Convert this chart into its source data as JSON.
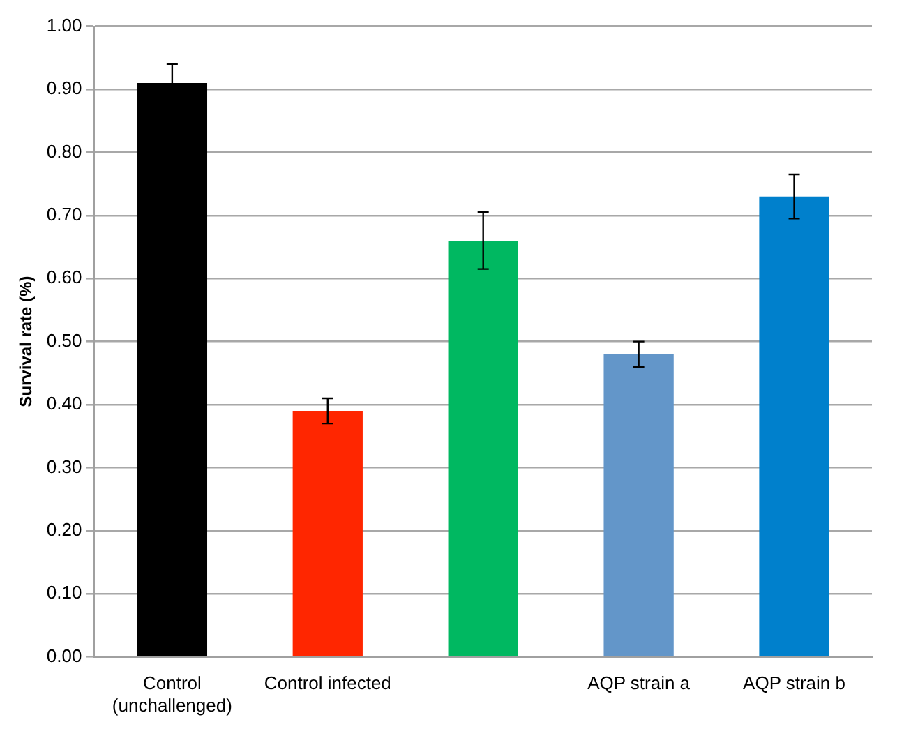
{
  "chart_data": {
    "type": "bar",
    "ylabel": "Survival rate (%)",
    "categories": [
      "Control (unchallenged)",
      "Control infected",
      null,
      "AQP strain a",
      "AQP strain b"
    ],
    "values": [
      0.91,
      0.39,
      0.66,
      0.48,
      0.73
    ],
    "colors": [
      "#000000",
      "#ff2600",
      "#00b861",
      "#6396c9",
      "#0080cc"
    ],
    "errors": [
      0.03,
      0.02,
      0.045,
      0.02,
      0.035
    ],
    "ylim": [
      0,
      1
    ],
    "yticks": [
      {
        "value": 0,
        "label": "0.00"
      },
      {
        "value": 0.1,
        "label": "0.10"
      },
      {
        "value": 0.2,
        "label": "0.20"
      },
      {
        "value": 0.3,
        "label": "0.30"
      },
      {
        "value": 0.4,
        "label": "0.40"
      },
      {
        "value": 0.5,
        "label": "0.50"
      },
      {
        "value": 0.6,
        "label": "0.60"
      },
      {
        "value": 0.7,
        "label": "0.70"
      },
      {
        "value": 0.8,
        "label": "0.80"
      },
      {
        "value": 0.9,
        "label": "0.90"
      },
      {
        "value": 1,
        "label": "1.00"
      }
    ],
    "grid": "y",
    "legend": false
  }
}
